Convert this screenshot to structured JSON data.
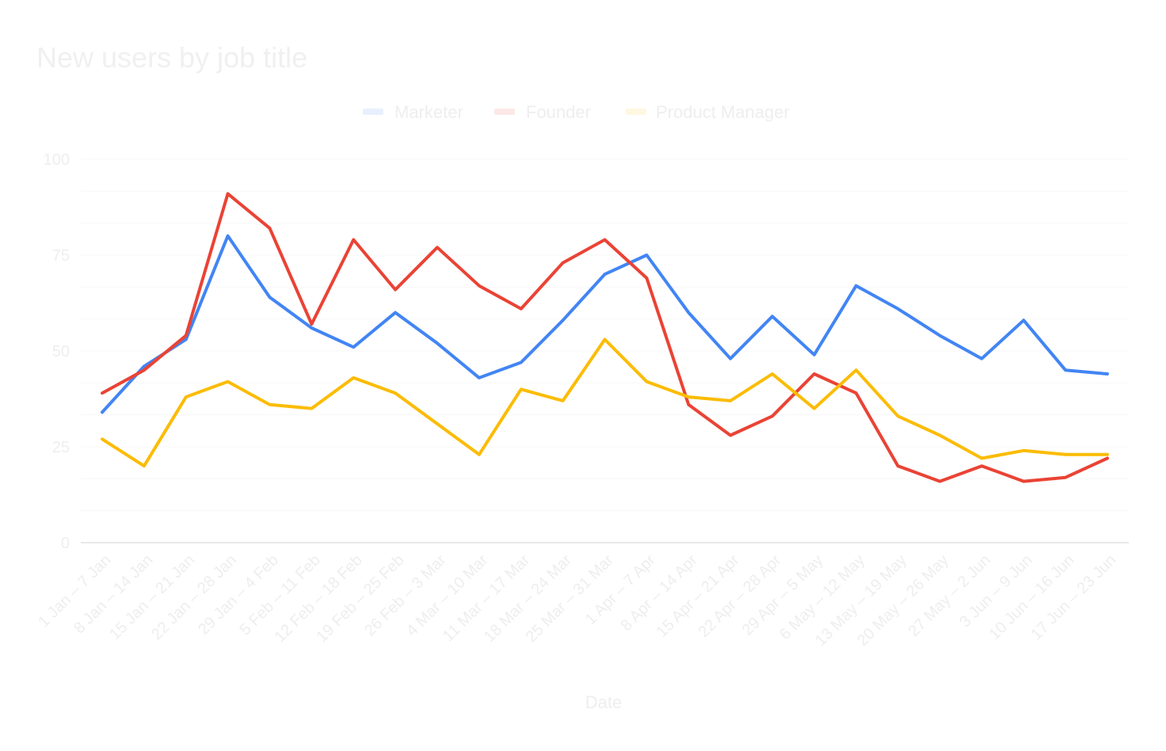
{
  "chart_data": {
    "type": "line",
    "title": "New users by job title",
    "xlabel": "Date",
    "ylabel": "",
    "ylim": [
      0,
      100
    ],
    "yticks": [
      "0",
      "25",
      "50",
      "75",
      "100"
    ],
    "grid": true,
    "legend_position": "top-center",
    "categories": [
      "1 Jan – 7 Jan",
      "8 Jan – 14 Jan",
      "15 Jan – 21 Jan",
      "22 Jan – 28 Jan",
      "29 Jan – 4 Feb",
      "5 Feb – 11 Feb",
      "12 Feb – 18 Feb",
      "19 Feb – 25 Feb",
      "26 Feb – 3 Mar",
      "4 Mar – 10 Mar",
      "11 Mar – 17 Mar",
      "18 Mar – 24 Mar",
      "25 Mar – 31 Mar",
      "1 Apr – 7 Apr",
      "8 Apr – 14 Apr",
      "15 Apr – 21 Apr",
      "22 Apr – 28 Apr",
      "29 Apr – 5 May",
      "6 May – 12 May",
      "13 May – 19 May",
      "20 May – 26 May",
      "27 May – 2 Jun",
      "3 Jun – 9 Jun",
      "10 Jun – 16 Jun",
      "17 Jun – 23 Jun"
    ],
    "series": [
      {
        "name": "Marketer",
        "color": "#4285f4",
        "values": [
          34,
          46,
          53,
          80,
          64,
          56,
          51,
          60,
          52,
          43,
          47,
          58,
          70,
          75,
          60,
          48,
          59,
          49,
          67,
          61,
          54,
          48,
          58,
          45,
          44
        ]
      },
      {
        "name": "Founder",
        "color": "#ea4335",
        "values": [
          39,
          45,
          54,
          91,
          82,
          57,
          79,
          66,
          77,
          67,
          61,
          73,
          79,
          69,
          36,
          28,
          33,
          44,
          39,
          20,
          16,
          20,
          16,
          17,
          22
        ]
      },
      {
        "name": "Product Manager",
        "color": "#fbbc04",
        "values": [
          27,
          20,
          38,
          42,
          36,
          35,
          43,
          39,
          31,
          23,
          40,
          37,
          53,
          42,
          38,
          37,
          44,
          35,
          45,
          33,
          28,
          22,
          24,
          23,
          23
        ]
      }
    ]
  },
  "colors": {
    "faded_text": "#eeeeee",
    "gridline": "#f7f7f7",
    "baseline": "#e0e0e0"
  }
}
